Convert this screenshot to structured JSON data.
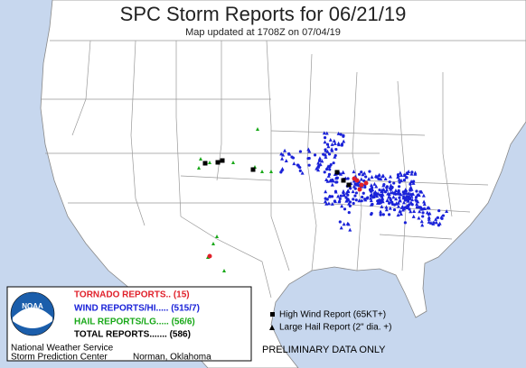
{
  "header": {
    "title": "SPC Storm Reports for 06/21/19",
    "subtitle": "Map updated at 1708Z on 07/04/19"
  },
  "legend": {
    "logo": "NOAA",
    "tornado": "TORNADO REPORTS.. (15)",
    "wind": "WIND REPORTS/HI..... (515/7)",
    "hail": "HAIL REPORTS/LG..... (56/6)",
    "total": "TOTAL REPORTS....... (586)",
    "agency": "National Weather Service",
    "center": "Storm Prediction Center",
    "city": "Norman, Oklahoma"
  },
  "key": {
    "high_wind": "High Wind Report (65KT+)",
    "large_hail": "Large Hail Report (2\" dia. +)"
  },
  "note": "PRELIMINARY DATA ONLY"
}
